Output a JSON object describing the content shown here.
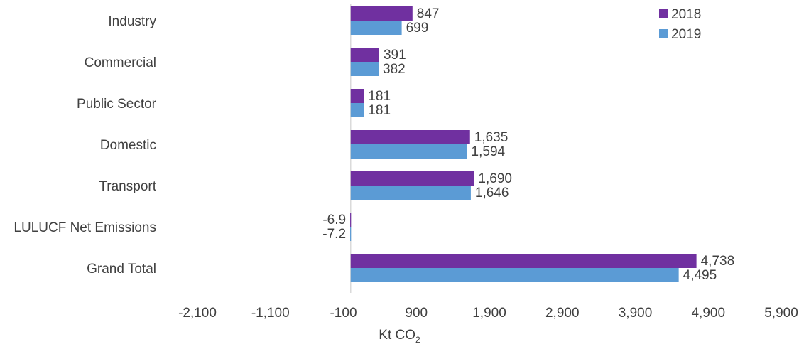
{
  "chart_data": {
    "type": "bar",
    "orientation": "horizontal",
    "categories": [
      "Industry",
      "Commercial",
      "Public Sector",
      "Domestic",
      "Transport",
      "LULUCF Net Emissions",
      "Grand Total"
    ],
    "series": [
      {
        "name": "2018",
        "color": "#7030A0",
        "values": [
          847,
          391,
          181,
          1635,
          1690,
          -6.9,
          4738
        ],
        "labels": [
          "847",
          "391",
          "181",
          "1,635",
          "1,690",
          "-6.9",
          "4,738"
        ]
      },
      {
        "name": "2019",
        "color": "#5B9BD5",
        "values": [
          699,
          382,
          181,
          1594,
          1646,
          -7.2,
          4495
        ],
        "labels": [
          "699",
          "382",
          "181",
          "1,594",
          "1,646",
          "-7.2",
          "4,495"
        ]
      }
    ],
    "xlim": [
      -2100,
      5900
    ],
    "x_ticks": [
      -2100,
      -1100,
      -100,
      900,
      1900,
      2900,
      3900,
      4900,
      5900
    ],
    "x_tick_labels": [
      "-2,100",
      "-1,100",
      "-100",
      "900",
      "1,900",
      "2,900",
      "3,900",
      "4,900",
      "5,900"
    ],
    "xlabel": "Kt CO",
    "xlabel_subscript": "2",
    "legend_position": "top-right",
    "grid": false
  }
}
